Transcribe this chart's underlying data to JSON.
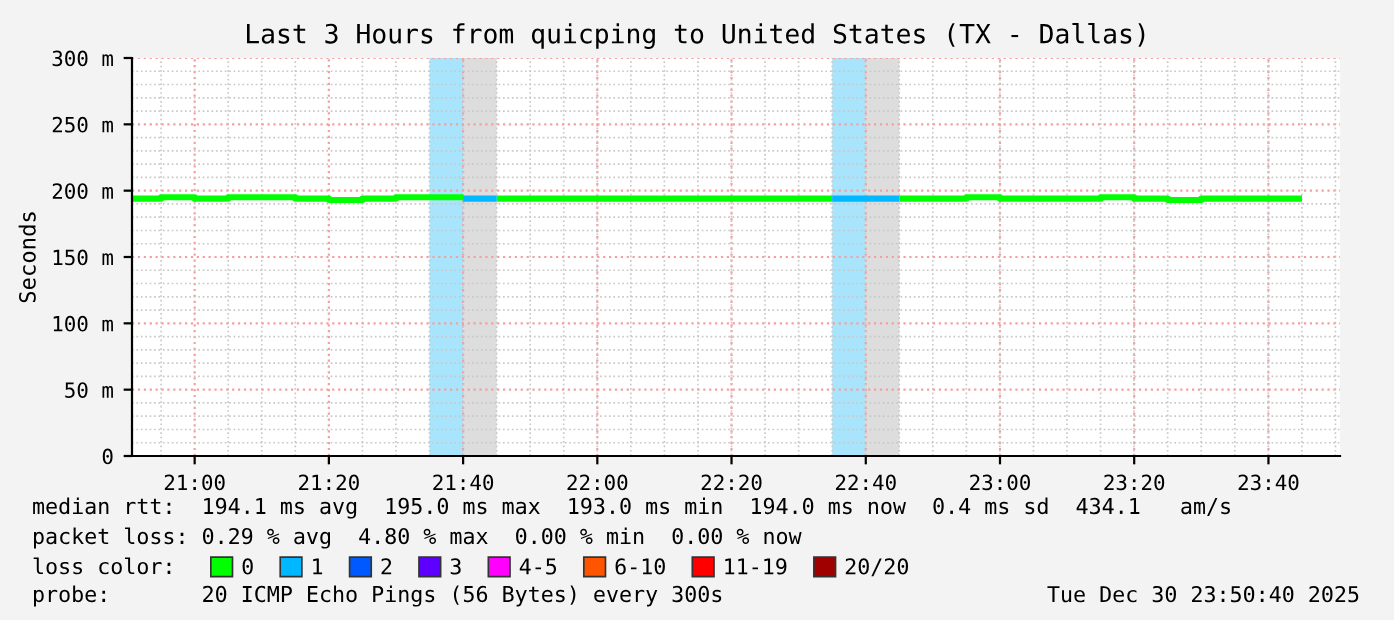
{
  "chart_data": {
    "type": "step",
    "title": "Last 3 Hours from quicping to United States (TX - Dallas)",
    "ylabel": "Seconds",
    "legend_title": "loss color:",
    "x": [
      20.8444,
      20.9167,
      21.0,
      21.0833,
      21.1667,
      21.25,
      21.3333,
      21.4167,
      21.5,
      21.5833,
      21.6667,
      21.75,
      21.8333,
      21.9167,
      22.0,
      22.0833,
      22.1667,
      22.25,
      22.3333,
      22.4167,
      22.5,
      22.5833,
      22.6667,
      22.75,
      22.8333,
      22.9167,
      23.0,
      23.0833,
      23.1667,
      23.25,
      23.3333,
      23.4167,
      23.5,
      23.5833,
      23.6667,
      23.75
    ],
    "series": [
      {
        "name": "0",
        "color": "#00ff00",
        "values": [
          194,
          195,
          194,
          195,
          195,
          194,
          193,
          194,
          195,
          195,
          null,
          194,
          194,
          194,
          194,
          194,
          194,
          194,
          194,
          194,
          194,
          null,
          null,
          194,
          194,
          195,
          194,
          194,
          194,
          195,
          194,
          193,
          194,
          194,
          194,
          194
        ]
      },
      {
        "name": "1",
        "color": "#00b8ff",
        "x": [
          21.6667,
          21.75,
          22.5833,
          22.6667,
          22.75
        ],
        "values": [
          194,
          194,
          194,
          194,
          194
        ]
      },
      {
        "name": "2",
        "color": "#0059ff",
        "values": [
          null,
          null,
          null,
          null,
          null,
          null,
          null,
          null,
          null,
          null,
          null,
          null,
          null,
          null,
          null,
          null,
          null,
          null,
          null,
          null,
          null,
          null,
          null,
          null,
          null,
          null,
          null,
          null,
          null,
          null,
          null,
          null,
          null,
          null,
          null,
          null
        ]
      },
      {
        "name": "3",
        "color": "#5e00ff",
        "values": [
          null,
          null,
          null,
          null,
          null,
          null,
          null,
          null,
          null,
          null,
          null,
          null,
          null,
          null,
          null,
          null,
          null,
          null,
          null,
          null,
          null,
          null,
          null,
          null,
          null,
          null,
          null,
          null,
          null,
          null,
          null,
          null,
          null,
          null,
          null,
          null
        ]
      },
      {
        "name": "4-5",
        "color": "#ff00ff",
        "values": [
          null,
          null,
          null,
          null,
          null,
          null,
          null,
          null,
          null,
          null,
          null,
          null,
          null,
          null,
          null,
          null,
          null,
          null,
          null,
          null,
          null,
          null,
          null,
          null,
          null,
          null,
          null,
          null,
          null,
          null,
          null,
          null,
          null,
          null,
          null,
          null
        ]
      },
      {
        "name": "6-10",
        "color": "#ff5500",
        "values": [
          null,
          null,
          null,
          null,
          null,
          null,
          null,
          null,
          null,
          null,
          null,
          null,
          null,
          null,
          null,
          null,
          null,
          null,
          null,
          null,
          null,
          null,
          null,
          null,
          null,
          null,
          null,
          null,
          null,
          null,
          null,
          null,
          null,
          null,
          null,
          null
        ]
      },
      {
        "name": "11-19",
        "color": "#ff0000",
        "values": [
          null,
          null,
          null,
          null,
          null,
          null,
          null,
          null,
          null,
          null,
          null,
          null,
          null,
          null,
          null,
          null,
          null,
          null,
          null,
          null,
          null,
          null,
          null,
          null,
          null,
          null,
          null,
          null,
          null,
          null,
          null,
          null,
          null,
          null,
          null,
          null
        ]
      },
      {
        "name": "20/20",
        "color": "#a10000",
        "values": [
          null,
          null,
          null,
          null,
          null,
          null,
          null,
          null,
          null,
          null,
          null,
          null,
          null,
          null,
          null,
          null,
          null,
          null,
          null,
          null,
          null,
          null,
          null,
          null,
          null,
          null,
          null,
          null,
          null,
          null,
          null,
          null,
          null,
          null,
          null,
          null
        ]
      }
    ],
    "bands": [
      {
        "axis": "x",
        "from": 21.5833,
        "to": 21.6667,
        "color": "#a8e4fb"
      },
      {
        "axis": "x",
        "from": 21.6667,
        "to": 21.75,
        "color": "#dddddd"
      },
      {
        "axis": "x",
        "from": 22.5833,
        "to": 22.6667,
        "color": "#a8e4fb"
      },
      {
        "axis": "x",
        "from": 22.6667,
        "to": 22.75,
        "color": "#dddddd"
      }
    ],
    "xlim": [
      20.8444,
      23.8444
    ],
    "xticks": [
      {
        "value": 21.0,
        "label": "21:00"
      },
      {
        "value": 21.3333,
        "label": "21:20"
      },
      {
        "value": 21.6667,
        "label": "21:40"
      },
      {
        "value": 22.0,
        "label": "22:00"
      },
      {
        "value": 22.3333,
        "label": "22:20"
      },
      {
        "value": 22.6667,
        "label": "22:40"
      },
      {
        "value": 23.0,
        "label": "23:00"
      },
      {
        "value": 23.3333,
        "label": "23:20"
      },
      {
        "value": 23.6667,
        "label": "23:40"
      }
    ],
    "ylim": [
      0,
      300
    ],
    "yticks": [
      0,
      {
        "value": 50,
        "label": "50 m"
      },
      {
        "value": 100,
        "label": "100 m"
      },
      {
        "value": 150,
        "label": "150 m"
      },
      {
        "value": 200,
        "label": "200 m"
      },
      {
        "value": 250,
        "label": "250 m"
      },
      {
        "value": 300,
        "label": "300 m"
      }
    ],
    "grid": true,
    "legend": "bottom",
    "annotations": [
      "median rtt:  194.1 ms avg  195.0 ms max  193.0 ms min  194.0 ms now  0.4 ms sd  434.1   am/s",
      "packet loss: 0.29 % avg  4.80 % max  0.00 % min  0.00 % now",
      "probe:       20 ICMP Echo Pings (56 Bytes) every 300s",
      "Tue Dec 30 23:50:40 2025"
    ]
  }
}
